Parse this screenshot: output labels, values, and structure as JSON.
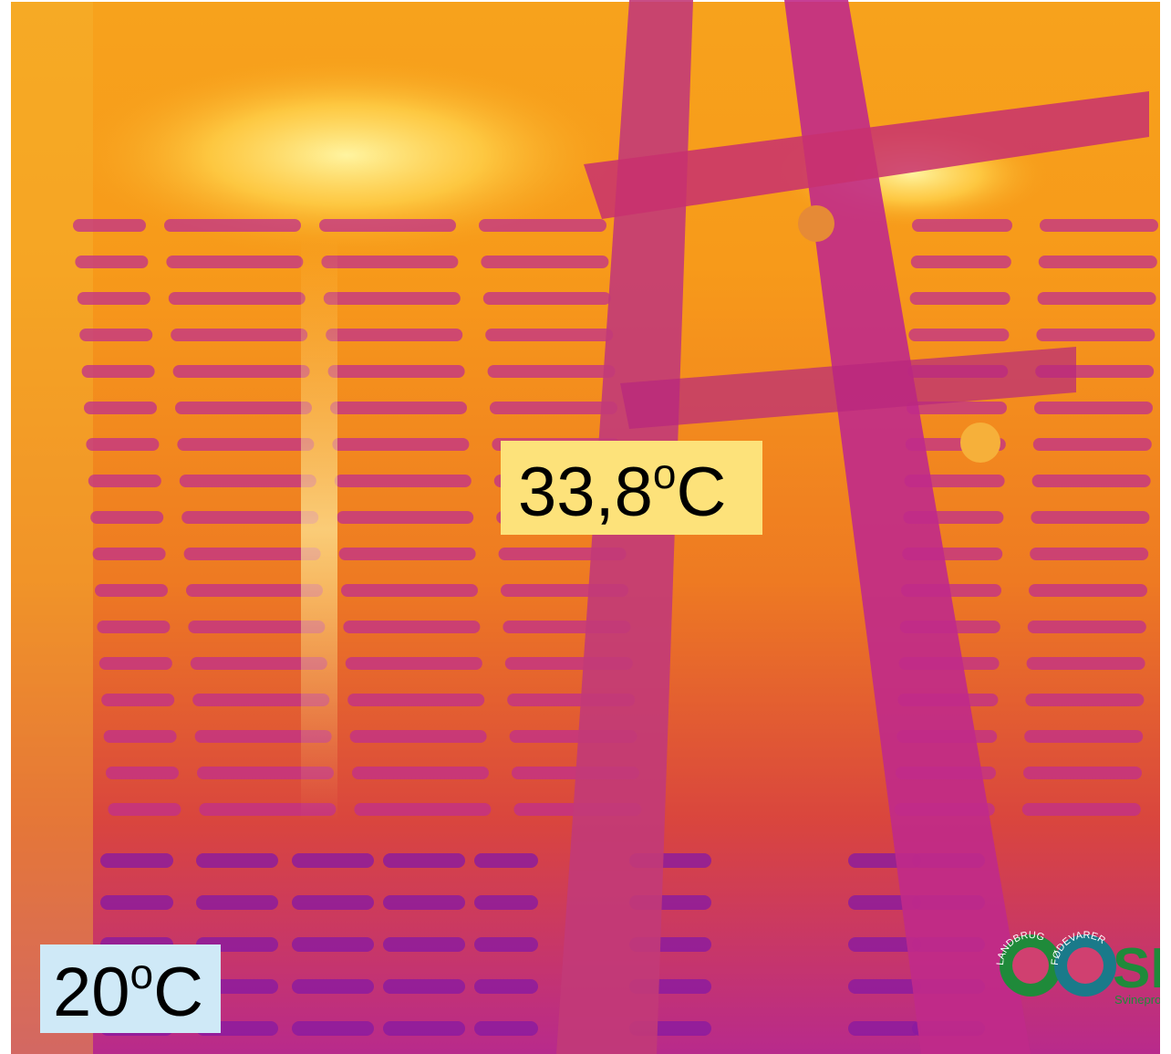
{
  "labels": {
    "hot": {
      "number": "33,8",
      "degree": "o",
      "unit": "C"
    },
    "cold": {
      "number": "20",
      "degree": "o",
      "unit": "C"
    }
  },
  "logo": {
    "left_ring": "LANDBRUG",
    "right_ring": "FØDEVARER",
    "mark": "SE",
    "subtitle": "Svinepro"
  }
}
